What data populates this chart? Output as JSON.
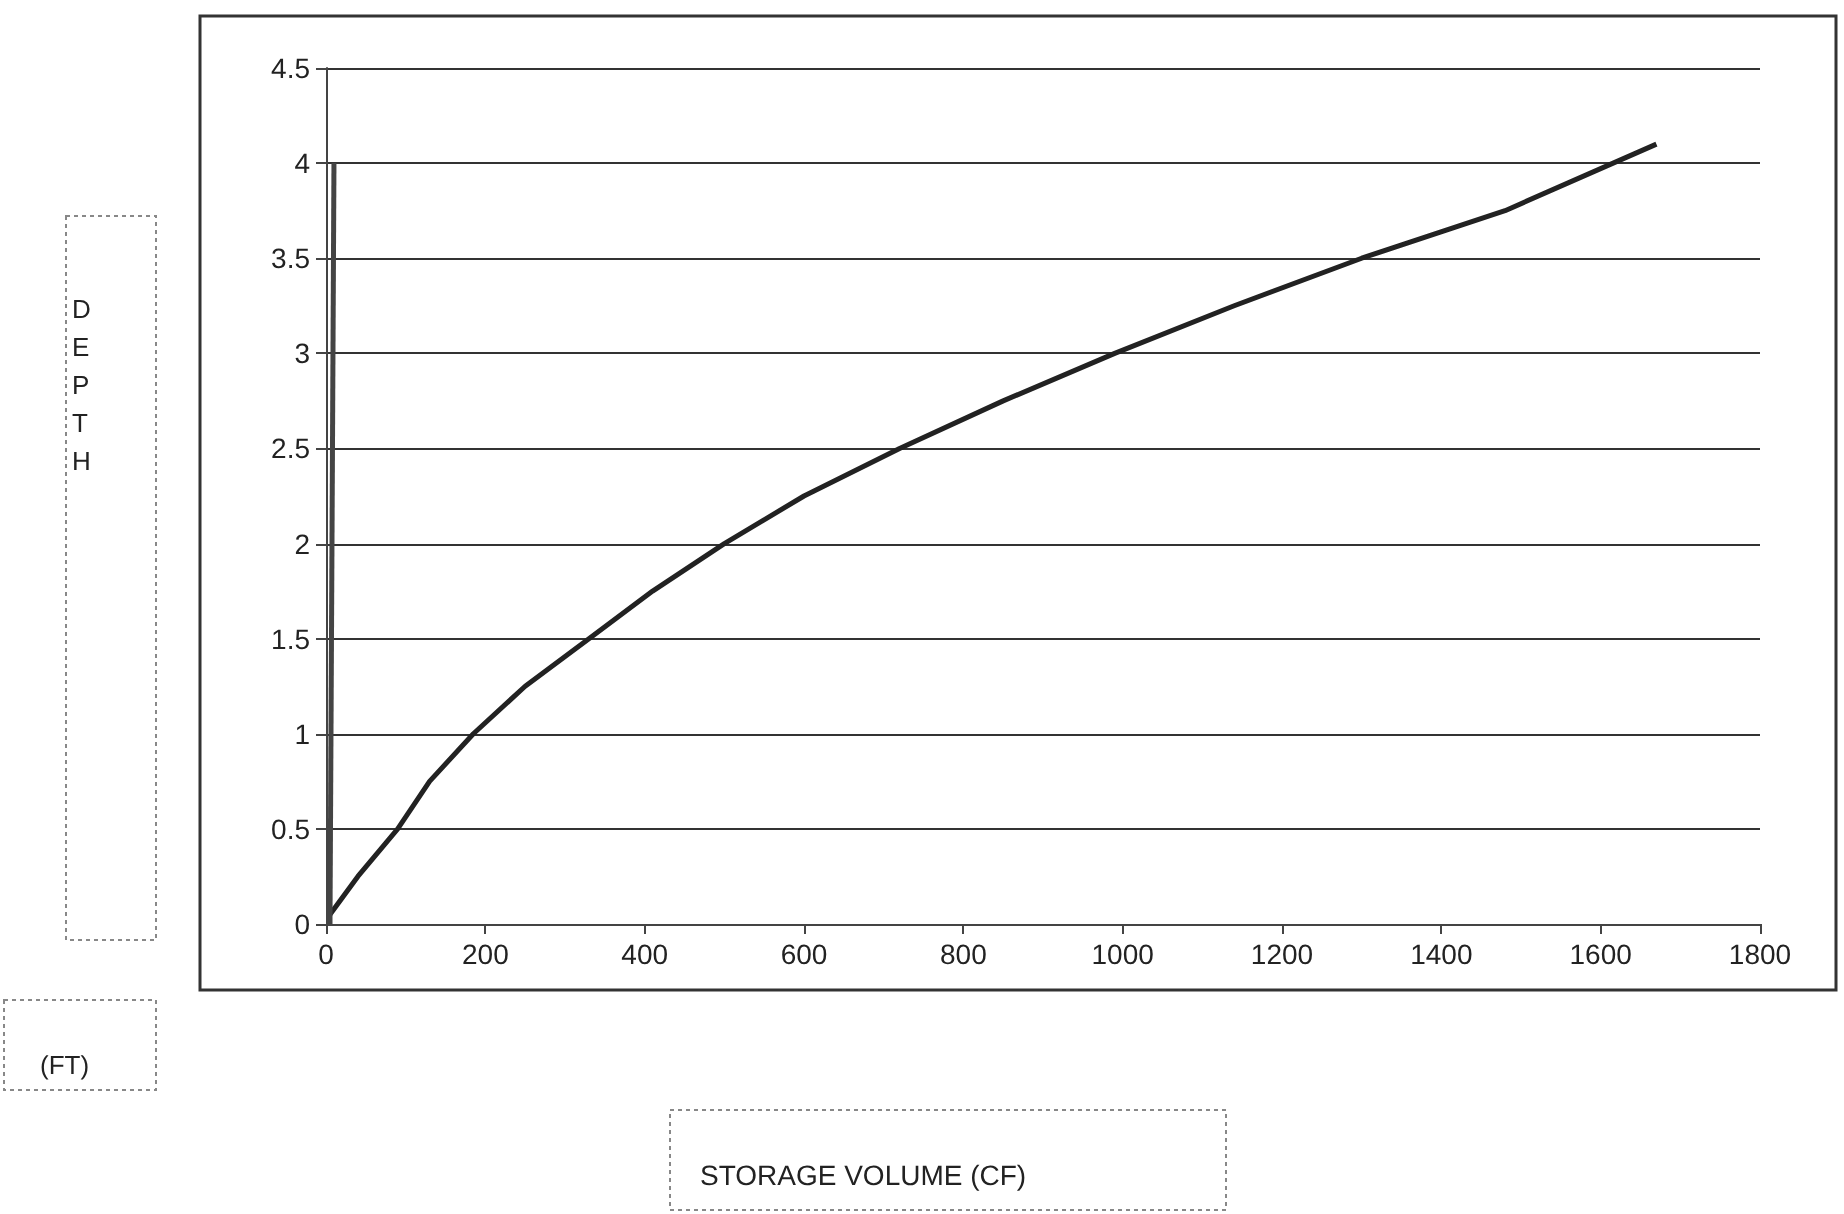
{
  "chart_data": {
    "type": "line",
    "annotations": [
      "DEPTH",
      "(FT)",
      "STORAGE VOLUME (CF)"
    ],
    "series": [
      {
        "color": "#222222",
        "x": [
          5,
          40,
          90,
          130,
          185,
          250,
          330,
          410,
          500,
          600,
          720,
          850,
          990,
          1140,
          1300,
          1480,
          1670
        ],
        "values": [
          0.05,
          0.25,
          0.5,
          0.75,
          1,
          1.25,
          1.5,
          1.75,
          2,
          2.25,
          2.5,
          2.75,
          3,
          3.25,
          3.5,
          3.75,
          4.1
        ]
      },
      {
        "color": "#444444",
        "x": [
          5,
          10
        ],
        "values": [
          0,
          4
        ]
      }
    ],
    "xlim": [
      0,
      1800
    ],
    "xticks": [
      0,
      200,
      400,
      600,
      800,
      1000,
      1200,
      1400,
      1600,
      1800
    ],
    "ylim": [
      0,
      4.5
    ],
    "yticks": [
      0,
      0.5,
      1,
      1.5,
      2,
      2.5,
      3,
      3.5,
      4,
      4.5
    ],
    "grid": "y",
    "marker": "none",
    "line_style": "solid"
  }
}
